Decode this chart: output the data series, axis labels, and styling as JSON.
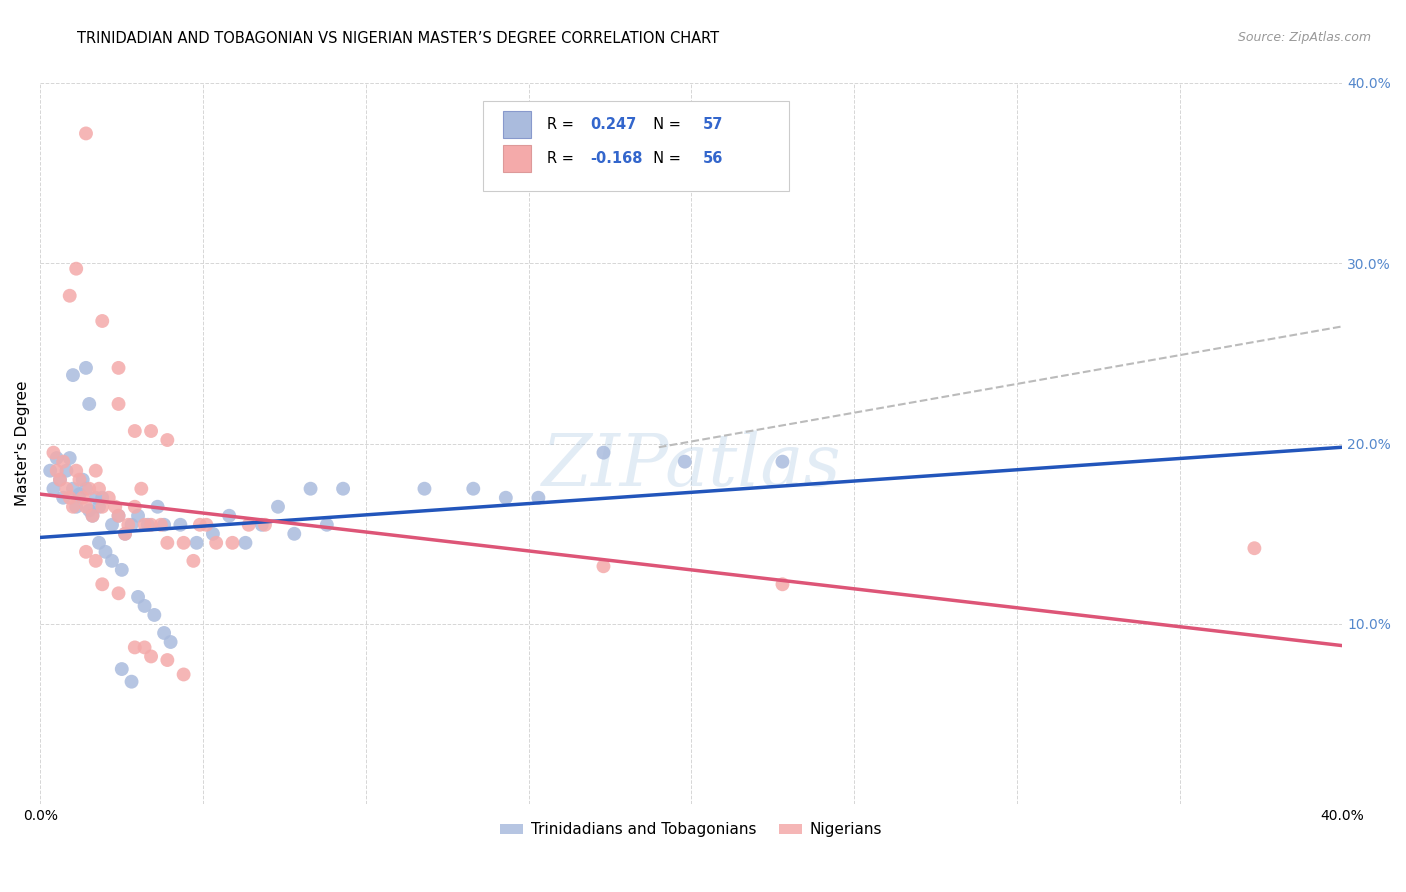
{
  "title": "TRINIDADIAN AND TOBAGONIAN VS NIGERIAN MASTER’S DEGREE CORRELATION CHART",
  "source_text": "Source: ZipAtlas.com",
  "ylabel": "Master's Degree",
  "x_min": 0.0,
  "x_max": 0.4,
  "y_min": 0.0,
  "y_max": 0.4,
  "legend_labels": [
    "Trinidadians and Tobagonians",
    "Nigerians"
  ],
  "r_blue": 0.247,
  "n_blue": 57,
  "r_pink": -0.168,
  "n_pink": 56,
  "blue_color": "#aabbdd",
  "pink_color": "#f4aaaa",
  "blue_line_color": "#2255bb",
  "pink_line_color": "#dd5577",
  "dashed_line_color": "#bbbbbb",
  "watermark": "ZIPatlas",
  "blue_line": [
    [
      0.0,
      0.148
    ],
    [
      0.4,
      0.198
    ]
  ],
  "pink_line": [
    [
      0.0,
      0.172
    ],
    [
      0.4,
      0.088
    ]
  ],
  "dashed_line": [
    [
      0.19,
      0.198
    ],
    [
      0.4,
      0.265
    ]
  ],
  "blue_points": [
    [
      0.003,
      0.185
    ],
    [
      0.004,
      0.175
    ],
    [
      0.005,
      0.192
    ],
    [
      0.006,
      0.18
    ],
    [
      0.007,
      0.17
    ],
    [
      0.008,
      0.185
    ],
    [
      0.009,
      0.192
    ],
    [
      0.01,
      0.175
    ],
    [
      0.011,
      0.165
    ],
    [
      0.012,
      0.172
    ],
    [
      0.013,
      0.18
    ],
    [
      0.014,
      0.175
    ],
    [
      0.015,
      0.163
    ],
    [
      0.016,
      0.16
    ],
    [
      0.017,
      0.17
    ],
    [
      0.018,
      0.165
    ],
    [
      0.019,
      0.17
    ],
    [
      0.022,
      0.155
    ],
    [
      0.024,
      0.16
    ],
    [
      0.026,
      0.15
    ],
    [
      0.028,
      0.155
    ],
    [
      0.03,
      0.16
    ],
    [
      0.033,
      0.155
    ],
    [
      0.036,
      0.165
    ],
    [
      0.038,
      0.155
    ],
    [
      0.043,
      0.155
    ],
    [
      0.048,
      0.145
    ],
    [
      0.053,
      0.15
    ],
    [
      0.058,
      0.16
    ],
    [
      0.063,
      0.145
    ],
    [
      0.068,
      0.155
    ],
    [
      0.073,
      0.165
    ],
    [
      0.078,
      0.15
    ],
    [
      0.083,
      0.175
    ],
    [
      0.088,
      0.155
    ],
    [
      0.093,
      0.175
    ],
    [
      0.01,
      0.238
    ],
    [
      0.014,
      0.242
    ],
    [
      0.015,
      0.222
    ],
    [
      0.018,
      0.145
    ],
    [
      0.02,
      0.14
    ],
    [
      0.022,
      0.135
    ],
    [
      0.025,
      0.13
    ],
    [
      0.03,
      0.115
    ],
    [
      0.032,
      0.11
    ],
    [
      0.035,
      0.105
    ],
    [
      0.038,
      0.095
    ],
    [
      0.04,
      0.09
    ],
    [
      0.025,
      0.075
    ],
    [
      0.028,
      0.068
    ],
    [
      0.118,
      0.175
    ],
    [
      0.133,
      0.175
    ],
    [
      0.143,
      0.17
    ],
    [
      0.153,
      0.17
    ],
    [
      0.173,
      0.195
    ],
    [
      0.198,
      0.19
    ],
    [
      0.228,
      0.19
    ]
  ],
  "pink_points": [
    [
      0.004,
      0.195
    ],
    [
      0.005,
      0.185
    ],
    [
      0.006,
      0.18
    ],
    [
      0.007,
      0.19
    ],
    [
      0.008,
      0.175
    ],
    [
      0.009,
      0.17
    ],
    [
      0.01,
      0.165
    ],
    [
      0.011,
      0.185
    ],
    [
      0.012,
      0.18
    ],
    [
      0.013,
      0.17
    ],
    [
      0.014,
      0.165
    ],
    [
      0.015,
      0.175
    ],
    [
      0.016,
      0.16
    ],
    [
      0.017,
      0.185
    ],
    [
      0.018,
      0.175
    ],
    [
      0.019,
      0.165
    ],
    [
      0.021,
      0.17
    ],
    [
      0.023,
      0.165
    ],
    [
      0.024,
      0.16
    ],
    [
      0.026,
      0.15
    ],
    [
      0.027,
      0.155
    ],
    [
      0.029,
      0.165
    ],
    [
      0.031,
      0.175
    ],
    [
      0.032,
      0.155
    ],
    [
      0.034,
      0.155
    ],
    [
      0.037,
      0.155
    ],
    [
      0.039,
      0.145
    ],
    [
      0.044,
      0.145
    ],
    [
      0.047,
      0.135
    ],
    [
      0.049,
      0.155
    ],
    [
      0.051,
      0.155
    ],
    [
      0.054,
      0.145
    ],
    [
      0.059,
      0.145
    ],
    [
      0.064,
      0.155
    ],
    [
      0.069,
      0.155
    ],
    [
      0.011,
      0.297
    ],
    [
      0.014,
      0.372
    ],
    [
      0.019,
      0.268
    ],
    [
      0.024,
      0.242
    ],
    [
      0.024,
      0.222
    ],
    [
      0.029,
      0.207
    ],
    [
      0.034,
      0.207
    ],
    [
      0.039,
      0.202
    ],
    [
      0.009,
      0.282
    ],
    [
      0.014,
      0.14
    ],
    [
      0.017,
      0.135
    ],
    [
      0.019,
      0.122
    ],
    [
      0.024,
      0.117
    ],
    [
      0.029,
      0.087
    ],
    [
      0.032,
      0.087
    ],
    [
      0.034,
      0.082
    ],
    [
      0.039,
      0.08
    ],
    [
      0.044,
      0.072
    ],
    [
      0.173,
      0.132
    ],
    [
      0.228,
      0.122
    ],
    [
      0.373,
      0.142
    ]
  ],
  "title_fontsize": 10.5,
  "axis_label_fontsize": 11,
  "tick_fontsize": 10,
  "legend_fontsize": 11,
  "watermark_fontsize": 52,
  "background_color": "#ffffff",
  "grid_color": "#cccccc"
}
